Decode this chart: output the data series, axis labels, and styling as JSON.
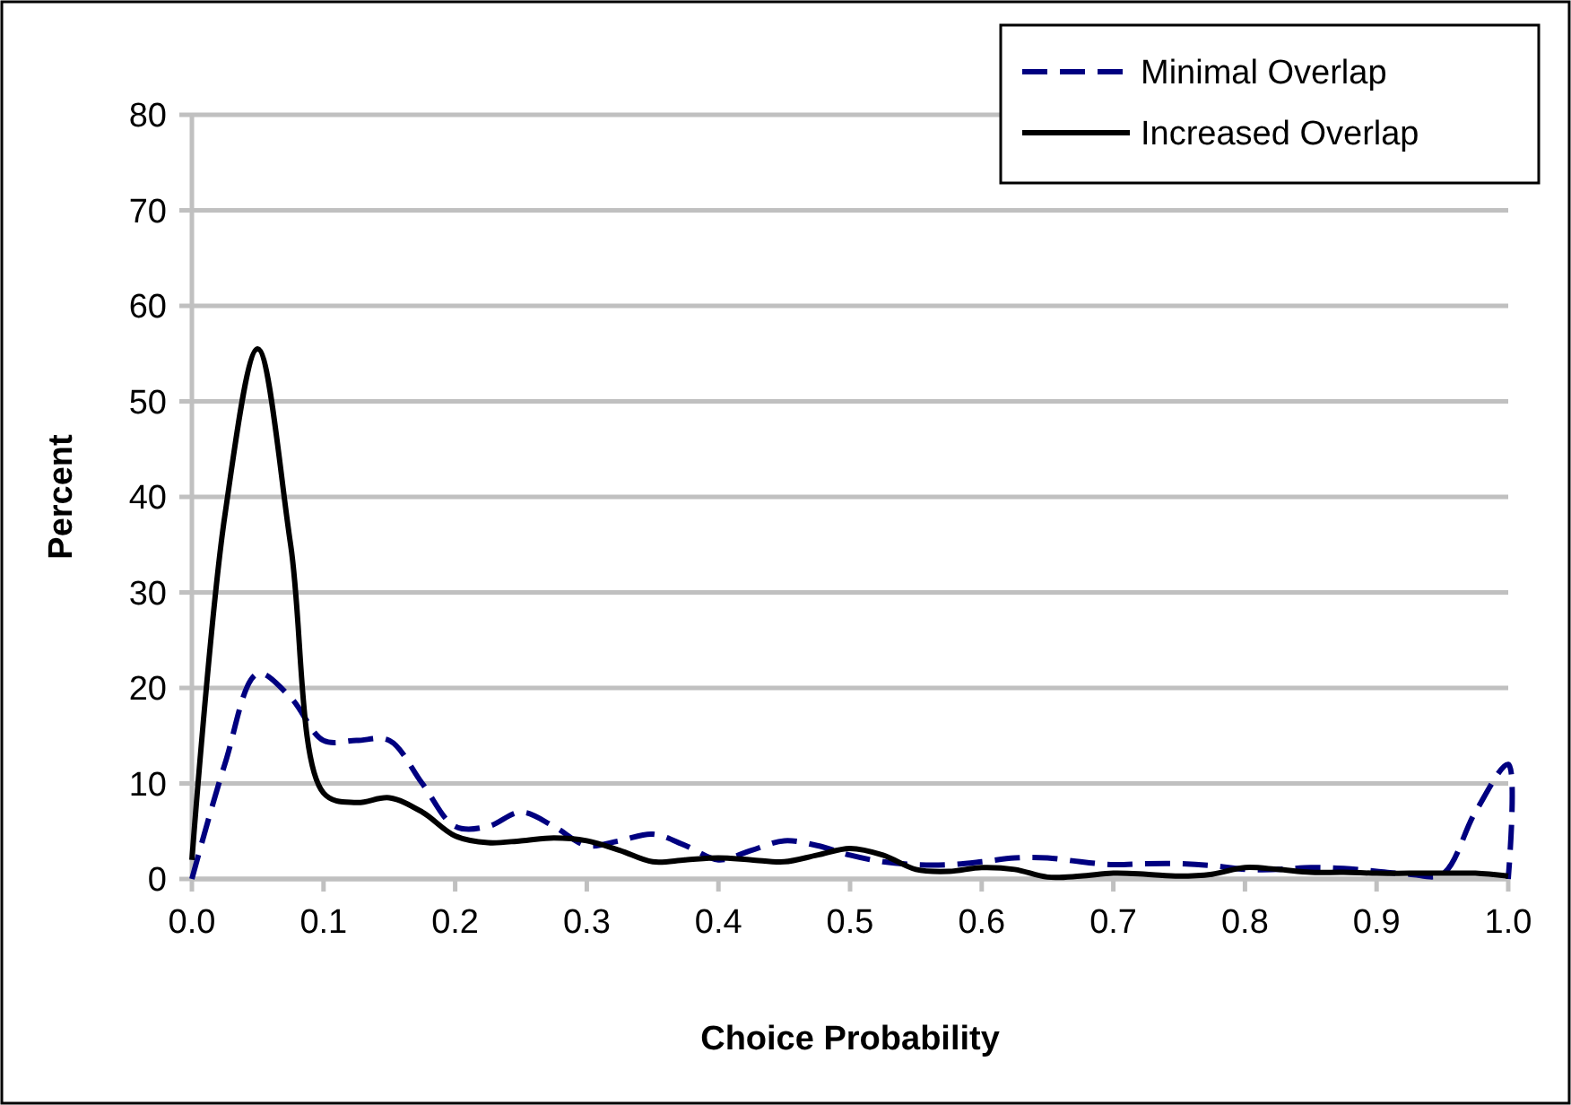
{
  "chart_data": {
    "type": "line",
    "xlabel": "Choice Probability",
    "ylabel": "Percent",
    "x": [
      0,
      0.025,
      0.05,
      0.075,
      0.1,
      0.125,
      0.15,
      0.175,
      0.2,
      0.225,
      0.25,
      0.275,
      0.3,
      0.325,
      0.35,
      0.375,
      0.4,
      0.425,
      0.45,
      0.475,
      0.5,
      0.525,
      0.55,
      0.575,
      0.6,
      0.625,
      0.65,
      0.675,
      0.7,
      0.725,
      0.75,
      0.775,
      0.8,
      0.825,
      0.85,
      0.875,
      0.9,
      0.925,
      0.95,
      0.975,
      1.0
    ],
    "series": [
      {
        "name": "Minimal Overlap",
        "color": "#000080",
        "line_style": "dashed",
        "x": [
          0,
          0.025,
          0.05,
          0.075,
          0.1,
          0.125,
          0.15,
          0.175,
          0.2,
          0.225,
          0.25,
          0.275,
          0.3,
          0.325,
          0.35,
          0.375,
          0.4,
          0.425,
          0.45,
          0.475,
          0.5,
          0.525,
          0.55,
          0.575,
          0.6,
          0.625,
          0.65,
          0.675,
          0.7,
          0.725,
          0.75,
          0.775,
          0.8,
          0.825,
          0.85,
          0.875,
          0.9,
          0.925,
          0.95,
          0.975,
          1.0,
          1.0
        ],
        "values": [
          0,
          12,
          21.5,
          19,
          14.5,
          14.5,
          14.5,
          10,
          5.5,
          5.5,
          7,
          5.5,
          3.5,
          4,
          4.7,
          3.5,
          2,
          3,
          4,
          3.5,
          2.5,
          1.8,
          1.5,
          1.5,
          1.8,
          2.2,
          2.2,
          1.8,
          1.5,
          1.6,
          1.6,
          1.4,
          1,
          1,
          1.2,
          1.1,
          0.8,
          0.5,
          0.5,
          7,
          12,
          0
        ]
      },
      {
        "name": "Increased Overlap",
        "color": "#000000",
        "line_style": "solid",
        "values": [
          2,
          38,
          55.5,
          35,
          9,
          8,
          8.5,
          7,
          4.5,
          3.8,
          4,
          4.3,
          4,
          3,
          1.8,
          2,
          2.2,
          2,
          1.8,
          2.5,
          3.2,
          2.5,
          1,
          0.8,
          1.2,
          1,
          0.2,
          0.3,
          0.6,
          0.5,
          0.3,
          0.5,
          1.2,
          1,
          0.7,
          0.7,
          0.6,
          0.6,
          0.6,
          0.6,
          0.3
        ]
      }
    ],
    "xlim": [
      0,
      1
    ],
    "xticks": [
      {
        "value": 0,
        "label": "0.0"
      },
      {
        "value": 0.1,
        "label": "0.1"
      },
      {
        "value": 0.2,
        "label": "0.2"
      },
      {
        "value": 0.3,
        "label": "0.3"
      },
      {
        "value": 0.4,
        "label": "0.4"
      },
      {
        "value": 0.5,
        "label": "0.5"
      },
      {
        "value": 0.6,
        "label": "0.6"
      },
      {
        "value": 0.7,
        "label": "0.7"
      },
      {
        "value": 0.8,
        "label": "0.8"
      },
      {
        "value": 0.9,
        "label": "0.9"
      },
      {
        "value": 1,
        "label": "1.0"
      }
    ],
    "ylim": [
      0,
      80
    ],
    "yticks": [
      0,
      10,
      20,
      30,
      40,
      50,
      60,
      70,
      80
    ],
    "grid": "y",
    "legend": "top right"
  }
}
